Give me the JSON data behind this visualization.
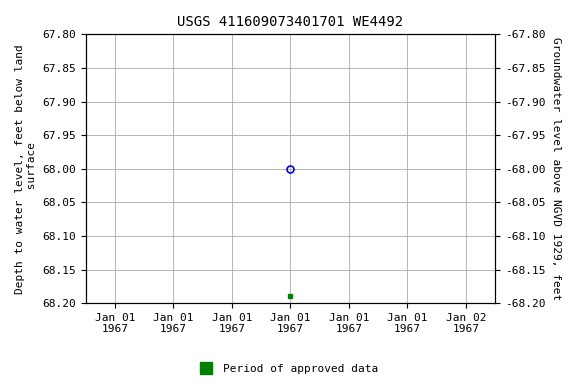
{
  "title": "USGS 411609073401701 WE4492",
  "ylabel_left": "Depth to water level, feet below land\n surface",
  "ylabel_right": "Groundwater level above NGVD 1929, feet",
  "ylim": [
    67.8,
    68.2
  ],
  "ylim_right": [
    -67.8,
    -68.2
  ],
  "yticks_left": [
    67.8,
    67.85,
    67.9,
    67.95,
    68.0,
    68.05,
    68.1,
    68.15,
    68.2
  ],
  "yticks_right": [
    -67.8,
    -67.85,
    -67.9,
    -67.95,
    -68.0,
    -68.05,
    -68.1,
    -68.15,
    -68.2
  ],
  "xtick_labels": [
    "Jan 01\n1967",
    "Jan 01\n1967",
    "Jan 01\n1967",
    "Jan 01\n1967",
    "Jan 01\n1967",
    "Jan 01\n1967",
    "Jan 02\n1967"
  ],
  "xtick_positions": [
    0,
    1,
    2,
    3,
    4,
    5,
    6
  ],
  "xlim": [
    -0.5,
    6.5
  ],
  "point_open_x": 3,
  "point_open_value": 68.0,
  "point_open_color": "#0000FF",
  "point_filled_x": 3,
  "point_filled_value": 68.19,
  "point_filled_color": "#008000",
  "legend_label": "Period of approved data",
  "legend_color": "#008000",
  "background_color": "#ffffff",
  "grid_color": "#aaaaaa",
  "font_family": "monospace",
  "title_fontsize": 10,
  "axis_label_fontsize": 8,
  "tick_label_fontsize": 8
}
